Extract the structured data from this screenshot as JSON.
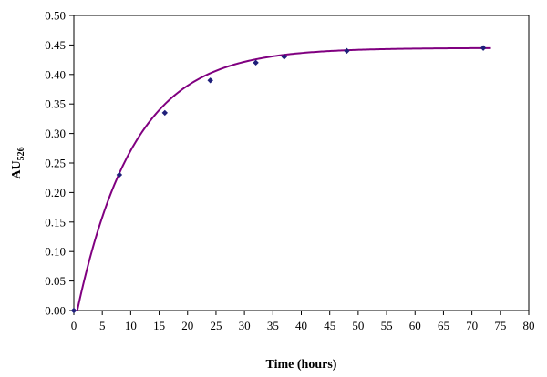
{
  "chart_data": {
    "type": "scatter",
    "xlabel": "Time (hours)",
    "ylabel": {
      "main": "AU",
      "subscript": "526"
    },
    "xlim": [
      0,
      80
    ],
    "ylim": [
      0,
      0.5
    ],
    "xticks": [
      "0",
      "5",
      "10",
      "15",
      "20",
      "25",
      "30",
      "35",
      "40",
      "45",
      "50",
      "55",
      "60",
      "65",
      "70",
      "75",
      "80"
    ],
    "yticks": [
      "0.00",
      "0.05",
      "0.10",
      "0.15",
      "0.20",
      "0.25",
      "0.30",
      "0.35",
      "0.40",
      "0.45",
      "0.50"
    ],
    "grid": false,
    "legend": "none",
    "points": [
      {
        "x": 0,
        "y": 0.0
      },
      {
        "x": 8,
        "y": 0.23
      },
      {
        "x": 16,
        "y": 0.335
      },
      {
        "x": 24,
        "y": 0.39
      },
      {
        "x": 32,
        "y": 0.42
      },
      {
        "x": 37,
        "y": 0.43
      },
      {
        "x": 48,
        "y": 0.44
      },
      {
        "x": 72,
        "y": 0.445
      }
    ],
    "fit_curve": {
      "model": "exponential rise to plateau",
      "plateau": 0.445,
      "rate": 0.1,
      "x_offset": 0.6,
      "x_end": 73.5
    },
    "colors": {
      "points": "#1f1f7a",
      "curve": "#800080",
      "axis": "#000000"
    }
  }
}
